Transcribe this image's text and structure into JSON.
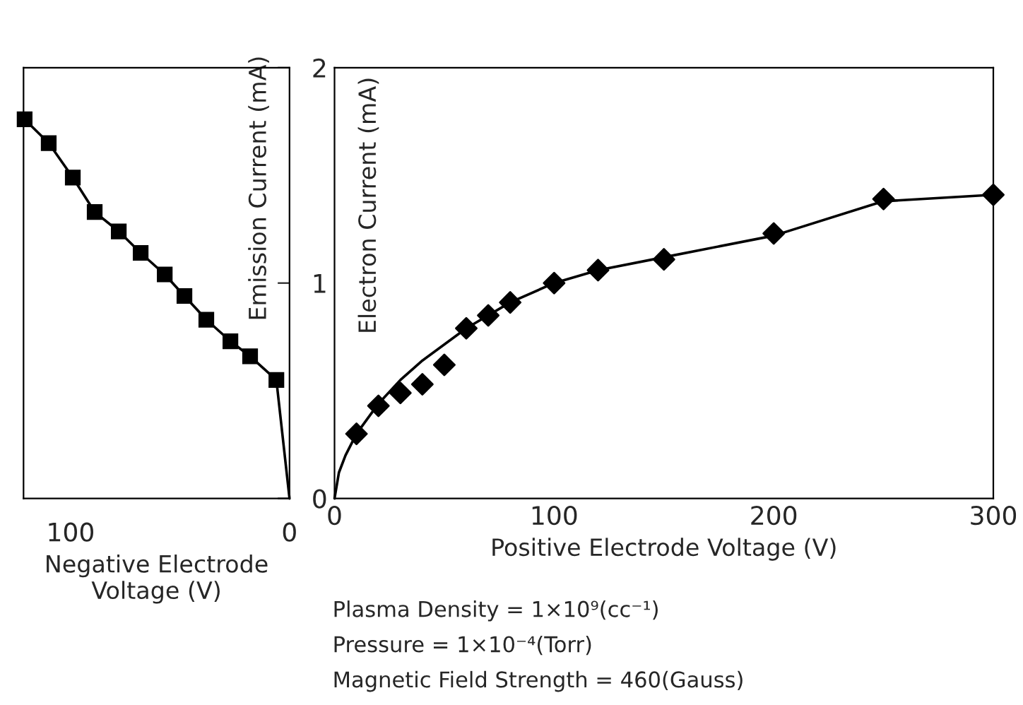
{
  "chart_data": [
    {
      "type": "line",
      "xlabel": "Negative Electrode\nVoltage (V)",
      "ylabel": "Emission Current (mA)",
      "xlim": [
        121.5,
        0
      ],
      "xticks": [
        100,
        0
      ],
      "ylim": [
        0,
        2
      ],
      "yticks": [
        0,
        1,
        2
      ],
      "tick_labels": "x",
      "grid": false,
      "legend": false,
      "series": [
        {
          "color": "#000000",
          "marker": "square",
          "line_style": "solid",
          "x": [
            121,
            110,
            99,
            89,
            78,
            68,
            57,
            48,
            38,
            27,
            18,
            6
          ],
          "values": [
            1.76,
            1.65,
            1.49,
            1.33,
            1.24,
            1.14,
            1.04,
            0.94,
            0.83,
            0.73,
            0.66,
            0.55
          ]
        },
        {
          "color": "#000000",
          "marker": "none",
          "line_style": "solid",
          "x": [
            6,
            0
          ],
          "values": [
            0.55,
            0
          ]
        }
      ]
    },
    {
      "type": "scatter",
      "xlabel": "Positive Electrode Voltage (V)",
      "ylabel": "Electron Current (mA)",
      "xlim": [
        0,
        300
      ],
      "xticks": [
        0,
        100,
        200,
        300
      ],
      "ylim": [
        0,
        2
      ],
      "yticks": [
        0,
        1,
        2
      ],
      "grid": false,
      "legend": false,
      "annotations": [
        "Plasma Density = 1×10⁹(cc⁻¹)",
        "Pressure = 1×10⁻⁴(Torr)",
        "Magnetic Field Strength = 460(Gauss)"
      ],
      "series": [
        {
          "type": "scatter",
          "color": "#000000",
          "marker": "diamond",
          "x": [
            10,
            20,
            30,
            40,
            50,
            60,
            70,
            80,
            100,
            120,
            150,
            200,
            250,
            300
          ],
          "values": [
            0.3,
            0.43,
            0.49,
            0.53,
            0.62,
            0.79,
            0.85,
            0.91,
            1.0,
            1.06,
            1.11,
            1.23,
            1.39,
            1.41
          ]
        },
        {
          "type": "line",
          "color": "#000000",
          "marker": "none",
          "line_style": "solid",
          "x": [
            0,
            2,
            5,
            10,
            20,
            30,
            40,
            60,
            80,
            100,
            120,
            150,
            200,
            250,
            300
          ],
          "values": [
            0,
            0.12,
            0.2,
            0.3,
            0.44,
            0.55,
            0.64,
            0.79,
            0.91,
            1.0,
            1.06,
            1.12,
            1.22,
            1.38,
            1.41
          ]
        }
      ]
    }
  ]
}
